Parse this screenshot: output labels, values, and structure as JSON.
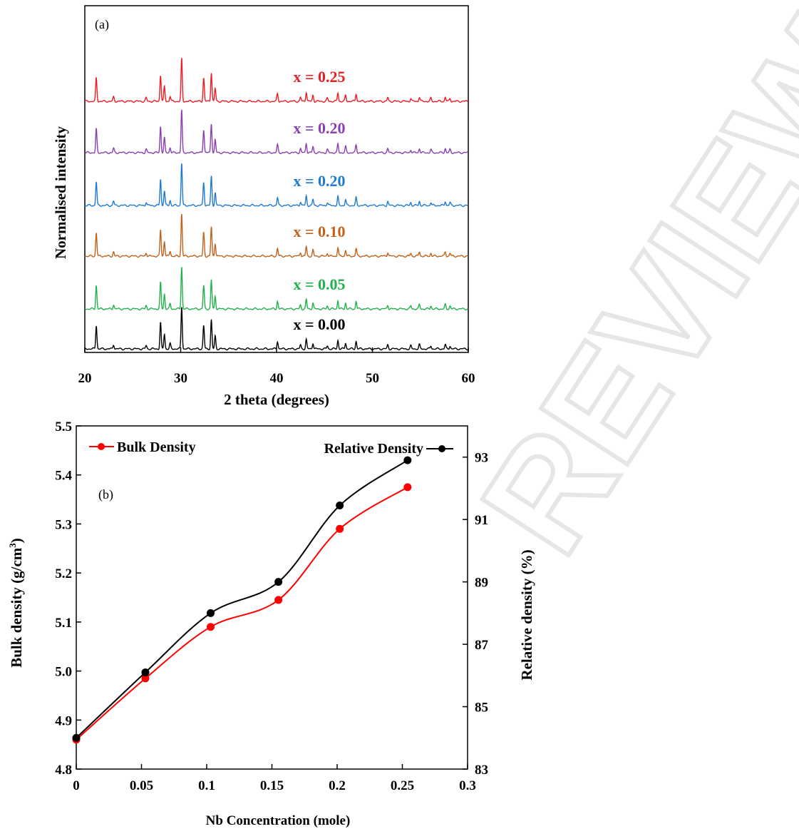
{
  "watermark": "REVIEW",
  "chart_data": [
    {
      "type": "line",
      "panel_label": "(a)",
      "xlabel": "2 theta (degrees)",
      "ylabel": "Normalised intensity",
      "xlim": [
        20,
        60
      ],
      "xticks": [
        20,
        30,
        40,
        50,
        60
      ],
      "grid": false,
      "peaks": [
        {
          "x": 21.2,
          "h": 0.55
        },
        {
          "x": 23.0,
          "h": 0.1
        },
        {
          "x": 26.4,
          "h": 0.08
        },
        {
          "x": 27.9,
          "h": 0.62
        },
        {
          "x": 28.3,
          "h": 0.35
        },
        {
          "x": 28.9,
          "h": 0.12
        },
        {
          "x": 30.1,
          "h": 1.0
        },
        {
          "x": 32.4,
          "h": 0.55
        },
        {
          "x": 33.2,
          "h": 0.68
        },
        {
          "x": 33.6,
          "h": 0.3
        },
        {
          "x": 40.1,
          "h": 0.18
        },
        {
          "x": 42.5,
          "h": 0.09
        },
        {
          "x": 43.1,
          "h": 0.22
        },
        {
          "x": 43.8,
          "h": 0.14
        },
        {
          "x": 45.3,
          "h": 0.07
        },
        {
          "x": 46.4,
          "h": 0.2
        },
        {
          "x": 47.2,
          "h": 0.14
        },
        {
          "x": 48.3,
          "h": 0.18
        },
        {
          "x": 51.6,
          "h": 0.09
        },
        {
          "x": 54.0,
          "h": 0.07
        },
        {
          "x": 54.9,
          "h": 0.1
        },
        {
          "x": 56.1,
          "h": 0.07
        },
        {
          "x": 57.6,
          "h": 0.1
        },
        {
          "x": 58.1,
          "h": 0.07
        }
      ],
      "series": [
        {
          "name": "x = 0.00",
          "color": "#000000"
        },
        {
          "name": "x = 0.05",
          "color": "#22b14c"
        },
        {
          "name": "x = 0.10",
          "color": "#c0621a"
        },
        {
          "name": "x = 0.20",
          "color": "#1f7bd1"
        },
        {
          "name": "x = 0.20",
          "color": "#8b3fb0"
        },
        {
          "name": "x = 0.25",
          "color": "#ee1c24"
        }
      ]
    },
    {
      "type": "line",
      "panel_label": "(b)",
      "xlabel": "Nb Concentration (mole)",
      "ylabel_left": "Bulk density (g/cm",
      "ylabel_left_sup": "3",
      "ylabel_left_close": ")",
      "ylabel_right": "Relative density (%)",
      "xlim": [
        0,
        0.3
      ],
      "ylim_left": [
        4.8,
        5.5
      ],
      "ylim_right": [
        83,
        94
      ],
      "xticks": [
        "0",
        "0.05",
        "0.1",
        "0.15",
        "0.2",
        "0.25",
        "0.3"
      ],
      "yticks_left": [
        "4.8",
        "4.9",
        "5.0",
        "5.1",
        "5.2",
        "5.3",
        "5.4",
        "5.5"
      ],
      "yticks_right": [
        "83",
        "85",
        "87",
        "89",
        "91",
        "93"
      ],
      "series": [
        {
          "name": "Bulk Density",
          "axis": "left",
          "color": "#ff0000",
          "x": [
            0,
            0.053,
            0.103,
            0.155,
            0.202,
            0.254
          ],
          "y": [
            4.86,
            4.985,
            5.09,
            5.145,
            5.29,
            5.375
          ]
        },
        {
          "name": "Relative Density",
          "axis": "right",
          "color": "#000000",
          "x": [
            0,
            0.053,
            0.103,
            0.155,
            0.202,
            0.254
          ],
          "y": [
            84.0,
            86.1,
            88.0,
            89.0,
            91.45,
            92.9
          ]
        }
      ]
    }
  ]
}
